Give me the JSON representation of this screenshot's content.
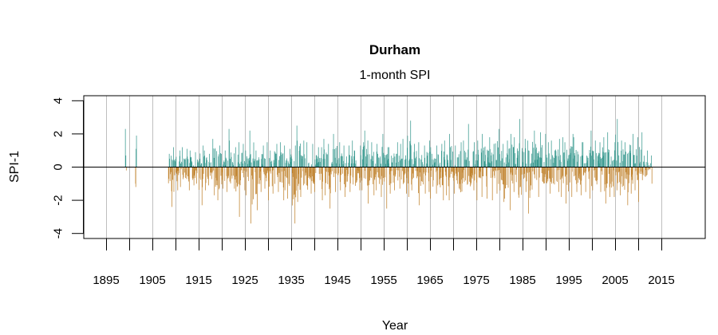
{
  "chart_data": {
    "type": "bar",
    "title": "Durham",
    "subtitle": "1-month SPI",
    "xlabel": "Year",
    "ylabel": "SPI-1",
    "xlim": [
      1890.3,
      2024.6
    ],
    "ylim": [
      -4.4,
      4.3
    ],
    "x_ticks": [
      1895,
      1900,
      1905,
      1910,
      1915,
      1920,
      1925,
      1930,
      1935,
      1940,
      1945,
      1950,
      1955,
      1960,
      1965,
      1970,
      1975,
      1980,
      1985,
      1990,
      1995,
      2000,
      2005,
      2010,
      2015
    ],
    "x_tick_labels": [
      "1895",
      "1905",
      "1915",
      "1925",
      "1935",
      "1945",
      "1955",
      "1965",
      "1975",
      "1985",
      "1995",
      "2005",
      "2015"
    ],
    "x_tick_label_years": [
      1895,
      1905,
      1915,
      1925,
      1935,
      1945,
      1955,
      1965,
      1975,
      1985,
      1995,
      2005,
      2015
    ],
    "y_ticks": [
      4,
      2,
      0,
      -2,
      -4
    ],
    "y_tick_labels": [
      "4",
      "2",
      "0",
      "-2",
      "-4"
    ],
    "grid": "vertical lines every 5 years",
    "colors": {
      "positive": "#3a9a90",
      "negative": "#c0832e",
      "grid": "#bebebe",
      "zero_line": "#000000"
    },
    "isolated_months": [
      {
        "year": 1899.1,
        "value": 2.3
      },
      {
        "year": 1899.2,
        "value": 0.7
      },
      {
        "year": 1899.3,
        "value": -0.2
      },
      {
        "year": 1901.4,
        "value": 1.1
      },
      {
        "year": 1901.5,
        "value": 1.9
      },
      {
        "year": 1901.3,
        "value": -1.0
      },
      {
        "year": 1901.35,
        "value": -1.2
      },
      {
        "year": 2012.8,
        "value": 0.7
      },
      {
        "year": 2012.9,
        "value": -1.0
      }
    ],
    "annual_envelope": {
      "start_year": 1908,
      "end_year": 2012,
      "max": [
        0.8,
        1.2,
        1.0,
        1.2,
        1.1,
        1.0,
        0.9,
        1.3,
        1.0,
        0.8,
        1.7,
        1.3,
        1.0,
        2.3,
        1.2,
        1.5,
        1.4,
        1.0,
        2.2,
        1.0,
        1.3,
        1.5,
        1.0,
        1.4,
        1.5,
        1.3,
        1.1,
        1.3,
        2.5,
        1.6,
        1.5,
        1.4,
        1.2,
        1.2,
        1.7,
        1.4,
        2.0,
        1.5,
        1.3,
        1.3,
        1.6,
        1.3,
        2.2,
        1.6,
        1.5,
        1.4,
        2.0,
        1.2,
        1.2,
        1.5,
        1.4,
        1.7,
        2.8,
        1.4,
        1.5,
        1.3,
        1.6,
        1.2,
        1.3,
        1.4,
        1.6,
        2.0,
        1.3,
        1.5,
        1.6,
        2.6,
        1.5,
        1.6,
        2.0,
        1.8,
        1.4,
        2.3,
        1.4,
        1.6,
        2.0,
        1.8,
        2.9,
        1.7,
        1.6,
        2.2,
        2.1,
        2.0,
        1.5,
        1.6,
        1.7,
        1.8,
        1.5,
        2.0,
        1.8,
        1.5,
        1.5,
        2.2,
        1.6,
        1.5,
        1.8,
        2.1,
        1.5,
        2.9,
        1.6,
        1.5,
        2.0,
        1.8,
        2.1,
        1.0,
        0.4
      ],
      "min": [
        -1.4,
        -2.4,
        -1.4,
        -1.2,
        -1.4,
        -1.1,
        -1.0,
        -2.3,
        -1.4,
        -1.1,
        -1.7,
        -2.0,
        -1.3,
        -1.5,
        -1.3,
        -3.0,
        -1.4,
        -1.7,
        -3.4,
        -2.6,
        -1.5,
        -1.3,
        -2.0,
        -1.6,
        -1.5,
        -2.0,
        -1.9,
        -3.4,
        -2.1,
        -1.8,
        -2.0,
        -1.6,
        -1.5,
        -2.0,
        -1.7,
        -2.5,
        -1.5,
        -1.4,
        -1.8,
        -1.5,
        -2.3,
        -1.4,
        -1.4,
        -2.2,
        -1.7,
        -1.4,
        -1.8,
        -2.5,
        -1.6,
        -1.4,
        -1.3,
        -1.6,
        -1.8,
        -1.4,
        -2.3,
        -1.6,
        -1.5,
        -1.9,
        -1.6,
        -2.0,
        -1.7,
        -2.0,
        -1.6,
        -2.7,
        -1.5,
        -1.8,
        -1.4,
        -2.0,
        -1.8,
        -1.9,
        -2.0,
        -1.6,
        -2.1,
        -1.9,
        -2.6,
        -1.5,
        -2.8,
        -1.5,
        -2.8,
        -2.2,
        -1.8,
        -1.6,
        -1.6,
        -1.7,
        -1.5,
        -1.8,
        -2.2,
        -1.8,
        -1.5,
        -1.7,
        -1.5,
        -1.9,
        -1.4,
        -1.5,
        -2.2,
        -1.8,
        -1.8,
        -1.4,
        -1.7,
        -2.3,
        -1.6,
        -1.4,
        -2.1,
        -1.0,
        -0.3
      ]
    }
  }
}
